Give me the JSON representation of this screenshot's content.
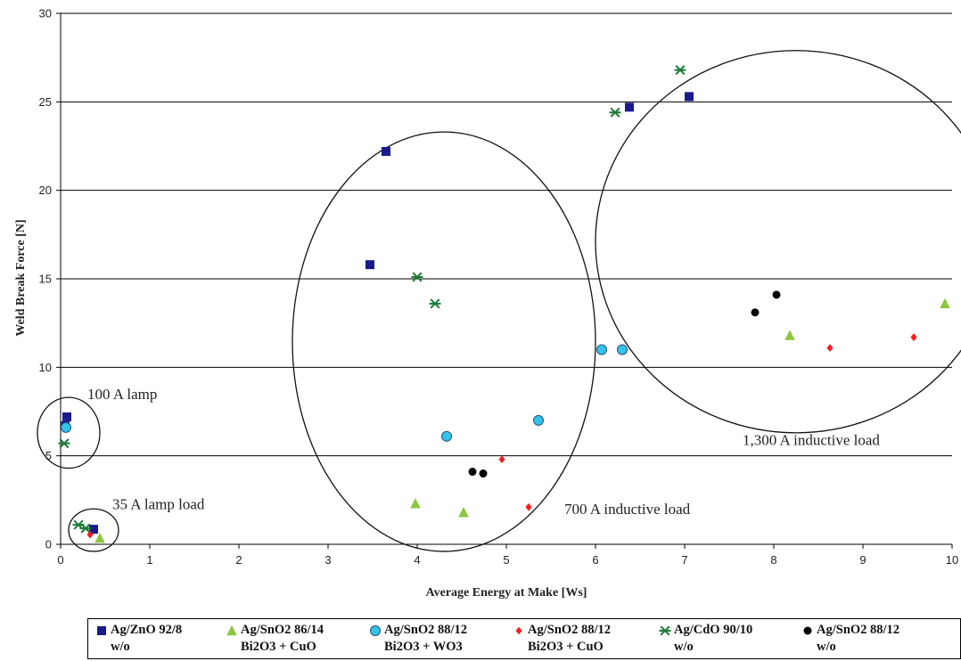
{
  "chart_data": {
    "type": "scatter",
    "title": "",
    "xlabel": "Average Energy at Make [Ws]",
    "ylabel": "Weld Break Force [N]",
    "xlim": [
      0,
      10
    ],
    "ylim": [
      0,
      30
    ],
    "xticks": [
      "0",
      "1",
      "2",
      "3",
      "4",
      "5",
      "6",
      "7",
      "8",
      "9",
      "10"
    ],
    "yticks": [
      "0",
      "5",
      "10",
      "15",
      "20",
      "25",
      "30"
    ],
    "grid": "horizontal",
    "legend_position": "bottom",
    "series": [
      {
        "name": "Ag/ZnO 92/8",
        "name2": "w/o",
        "marker": "square",
        "color": "#1a1a8c",
        "points": [
          [
            0.07,
            7.2
          ],
          [
            0.05,
            6.7
          ],
          [
            0.37,
            0.85
          ],
          [
            3.47,
            15.8
          ],
          [
            3.65,
            22.2
          ],
          [
            6.38,
            24.7
          ],
          [
            7.05,
            25.3
          ]
        ]
      },
      {
        "name": "Ag/SnO2 86/14",
        "name2": "Bi2O3 + CuO",
        "marker": "triangle",
        "color": "#8cc63f",
        "points": [
          [
            0.44,
            0.35
          ],
          [
            3.98,
            2.3
          ],
          [
            4.52,
            1.8
          ],
          [
            8.18,
            11.8
          ],
          [
            9.92,
            13.6
          ]
        ]
      },
      {
        "name": "Ag/SnO2 88/12",
        "name2": "Bi2O3 + WO3",
        "marker": "circle",
        "color": "#33c3e6",
        "points": [
          [
            0.06,
            6.6
          ],
          [
            4.33,
            6.1
          ],
          [
            5.36,
            7.0
          ],
          [
            6.07,
            11.0
          ],
          [
            6.3,
            11.0
          ]
        ]
      },
      {
        "name": "Ag/SnO2 88/12",
        "name2": "Bi2O3 + CuO",
        "marker": "diamond",
        "color": "#ff1a1a",
        "points": [
          [
            0.33,
            0.55
          ],
          [
            4.95,
            4.8
          ],
          [
            5.25,
            2.1
          ],
          [
            8.63,
            11.1
          ],
          [
            9.57,
            11.7
          ]
        ]
      },
      {
        "name": "Ag/CdO 90/10",
        "name2": "w/o",
        "marker": "star",
        "color": "#1f7a3a",
        "points": [
          [
            0.04,
            5.7
          ],
          [
            0.2,
            1.1
          ],
          [
            0.28,
            0.9
          ],
          [
            4.0,
            15.1
          ],
          [
            4.2,
            13.6
          ],
          [
            6.22,
            24.4
          ],
          [
            6.95,
            26.8
          ]
        ]
      },
      {
        "name": "Ag/SnO2 88/12",
        "name2": "w/o",
        "marker": "circle",
        "color": "#000000",
        "points": [
          [
            4.62,
            4.1
          ],
          [
            4.74,
            4.0
          ],
          [
            7.79,
            13.1
          ],
          [
            8.03,
            14.1
          ]
        ]
      }
    ],
    "annotations": [
      {
        "text": "100 A lamp",
        "x": 0.3,
        "y": 8.2
      },
      {
        "text": "35 A lamp load",
        "x": 0.58,
        "y": 2.0
      },
      {
        "text": "700 A inductive load",
        "x": 5.65,
        "y": 1.7
      },
      {
        "text": "1,300 A inductive load",
        "x": 7.65,
        "y": 5.6
      }
    ],
    "ellipses": [
      {
        "cx": 0.09,
        "cy": 6.3,
        "rx": 0.35,
        "ry": 2.0
      },
      {
        "cx": 0.37,
        "cy": 0.8,
        "rx": 0.28,
        "ry": 1.2
      },
      {
        "cx": 4.3,
        "cy": 11.45,
        "rx": 1.7,
        "ry": 11.85
      },
      {
        "cx": 8.25,
        "cy": 17.1,
        "rx": 2.25,
        "ry": 10.8
      }
    ]
  }
}
